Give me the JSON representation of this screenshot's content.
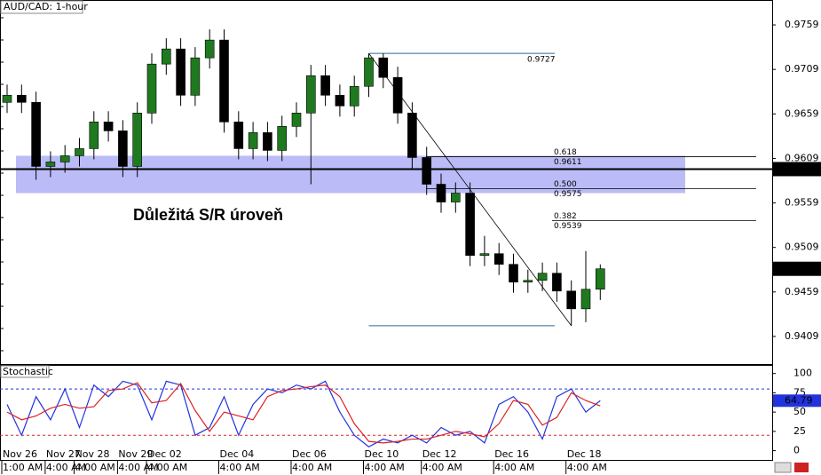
{
  "chart_data": {
    "type": "candlestick",
    "title": "AUD/CAD: 1-hour",
    "annotation": "Důležitá S/R úroveň",
    "categories": [
      "Nov 26",
      null,
      null,
      "Nov 27",
      null,
      "Nov 28",
      null,
      null,
      "Nov 29",
      null,
      "Dec 02",
      null,
      null,
      null,
      null,
      "Dec 04",
      null,
      null,
      null,
      null,
      "Dec 06",
      null,
      null,
      null,
      null,
      "Dec 10",
      null,
      null,
      null,
      "Dec 12",
      null,
      null,
      null,
      null,
      "Dec 16",
      null,
      null,
      null,
      null,
      "Dec 18",
      null,
      null
    ],
    "time_labels": [
      "1:00 AM",
      null,
      null,
      "4:00 AM",
      null,
      "4:00 AM",
      null,
      null,
      "4:00 AM",
      null,
      "4:00 AM",
      null,
      null,
      null,
      null,
      "4:00 AM",
      null,
      null,
      null,
      null,
      "4:00 AM",
      null,
      null,
      null,
      null,
      "4:00 AM",
      null,
      null,
      null,
      "4:00 AM",
      null,
      null,
      null,
      null,
      "4:00 AM",
      null,
      null,
      null,
      null,
      "4:00 AM",
      null,
      null
    ],
    "open": [
      0.9672,
      0.968,
      0.9672,
      0.96,
      0.9605,
      0.9612,
      0.962,
      0.965,
      0.964,
      0.96,
      0.966,
      0.9715,
      0.9732,
      0.968,
      0.9722,
      0.9742,
      0.965,
      0.962,
      0.9638,
      0.9618,
      0.9645,
      0.966,
      0.9702,
      0.968,
      0.9668,
      0.969,
      0.9722,
      0.97,
      0.966,
      0.961,
      0.958,
      0.956,
      0.957,
      0.95,
      0.9502,
      0.949,
      0.947,
      0.9472,
      0.948,
      0.946,
      0.944,
      0.9462
    ],
    "high": [
      0.9692,
      0.9692,
      0.9684,
      0.9617,
      0.9624,
      0.9632,
      0.9662,
      0.9662,
      0.9652,
      0.9672,
      0.9727,
      0.9744,
      0.9744,
      0.9734,
      0.9754,
      0.9754,
      0.9662,
      0.965,
      0.965,
      0.9657,
      0.9672,
      0.9714,
      0.9714,
      0.9692,
      0.9702,
      0.9727,
      0.9727,
      0.9712,
      0.9672,
      0.9622,
      0.9592,
      0.9582,
      0.9582,
      0.9522,
      0.9514,
      0.9502,
      0.9484,
      0.9492,
      0.9492,
      0.9472,
      0.9505,
      0.949
    ],
    "low": [
      0.966,
      0.966,
      0.9585,
      0.9588,
      0.9593,
      0.96,
      0.9608,
      0.9628,
      0.9588,
      0.9588,
      0.9648,
      0.9703,
      0.9668,
      0.9668,
      0.971,
      0.9638,
      0.9608,
      0.9608,
      0.9606,
      0.9606,
      0.9633,
      0.958,
      0.9668,
      0.9656,
      0.9656,
      0.9678,
      0.9688,
      0.9648,
      0.9598,
      0.9568,
      0.9548,
      0.9548,
      0.9488,
      0.9488,
      0.9478,
      0.9458,
      0.9458,
      0.946,
      0.9448,
      0.9421,
      0.9425,
      0.945
    ],
    "close": [
      0.968,
      0.9672,
      0.96,
      0.9605,
      0.9612,
      0.962,
      0.965,
      0.964,
      0.96,
      0.966,
      0.9715,
      0.9732,
      0.968,
      0.9722,
      0.9742,
      0.965,
      0.962,
      0.9638,
      0.9618,
      0.9645,
      0.966,
      0.9702,
      0.968,
      0.9668,
      0.969,
      0.9722,
      0.97,
      0.966,
      0.961,
      0.958,
      0.956,
      0.957,
      0.95,
      0.9502,
      0.949,
      0.947,
      0.9472,
      0.948,
      0.946,
      0.944,
      0.9462,
      0.9485
    ],
    "up_color": "#1f7a1f",
    "down_color": "#000000",
    "ylim": [
      0.9378,
      0.9787
    ],
    "yticks": [
      0.9409,
      0.9459,
      0.9509,
      0.9559,
      0.9609,
      0.9659,
      0.9709,
      0.9759
    ],
    "sr_level": 0.9597,
    "zone": [
      0.957,
      0.9612
    ],
    "zone_color": "#aaaaf5",
    "fib_high": 0.9727,
    "fib_low": 0.9421,
    "fib_levels": [
      {
        "ratio": "0.618",
        "price": 0.9611
      },
      {
        "ratio": "0.500",
        "price": 0.9575
      },
      {
        "ratio": "0.382",
        "price": 0.9539
      }
    ],
    "indicator": {
      "title": "Stochastic",
      "ylim": [
        -12,
        110
      ],
      "yticks": [
        0,
        25,
        50,
        75,
        100
      ],
      "levels": [
        20,
        80
      ],
      "series": [
        {
          "color": "#2233dd",
          "values": [
            60,
            20,
            70,
            40,
            80,
            30,
            85,
            70,
            90,
            85,
            40,
            90,
            85,
            20,
            30,
            70,
            20,
            60,
            80,
            75,
            85,
            80,
            90,
            50,
            20,
            5,
            15,
            10,
            20,
            10,
            30,
            20,
            25,
            10,
            60,
            70,
            50,
            15,
            70,
            80,
            50,
            64.79
          ]
        },
        {
          "color": "#dd2222",
          "values": [
            50,
            40,
            45,
            55,
            60,
            55,
            57,
            78,
            80,
            88,
            62,
            65,
            87,
            52,
            25,
            50,
            45,
            40,
            70,
            78,
            80,
            83,
            85,
            70,
            35,
            12,
            10,
            12,
            15,
            15,
            20,
            25,
            22,
            18,
            35,
            65,
            60,
            33,
            43,
            75,
            65,
            58
          ]
        }
      ]
    }
  }
}
